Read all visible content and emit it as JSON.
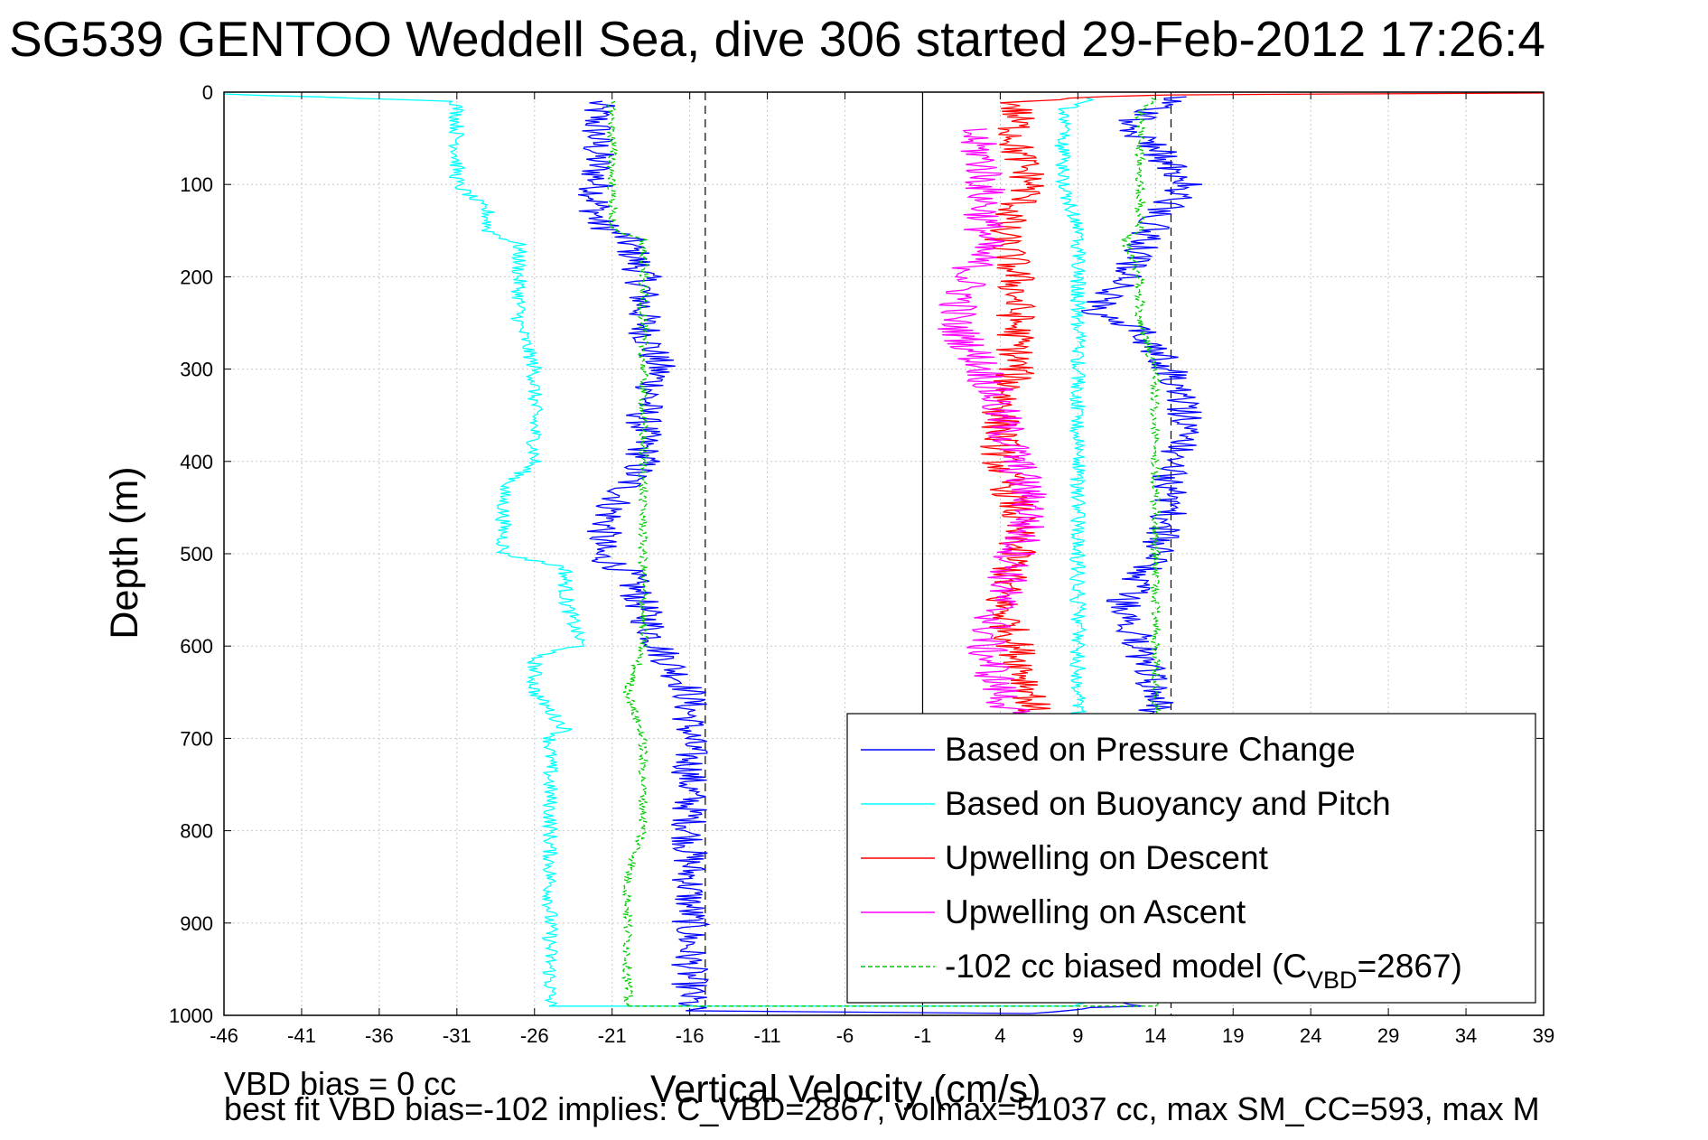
{
  "chart_data": {
    "type": "line",
    "title": "SG539 GENTOO Weddell Sea, dive 306 started 29-Feb-2012 17:26:4",
    "xlabel": "Vertical Velocity (cm/s)",
    "ylabel": "Depth (m)",
    "xlim": [
      -46,
      39
    ],
    "ylim": [
      0,
      1000
    ],
    "y_reversed": true,
    "grid": true,
    "xticks": [
      -46,
      -41,
      -36,
      -31,
      -26,
      -21,
      -16,
      -11,
      -6,
      -1,
      4,
      9,
      14,
      19,
      24,
      29,
      34,
      39
    ],
    "yticks": [
      0,
      100,
      200,
      300,
      400,
      500,
      600,
      700,
      800,
      900,
      1000
    ],
    "legend_position": "bottom-right",
    "reference_lines": {
      "solid_x": -1,
      "dashed_x": [
        -15,
        15
      ]
    },
    "series": [
      {
        "name": "Based on Pressure Change",
        "color": "#0000ff",
        "style": "solid",
        "noise": 1.2,
        "points": [
          [
            -22,
            10
          ],
          [
            -22,
            50
          ],
          [
            -22,
            100
          ],
          [
            -22,
            140
          ],
          [
            -20,
            160
          ],
          [
            -19,
            200
          ],
          [
            -19,
            250
          ],
          [
            -18,
            300
          ],
          [
            -19,
            350
          ],
          [
            -19,
            400
          ],
          [
            -21,
            450
          ],
          [
            -22,
            500
          ],
          [
            -20,
            520
          ],
          [
            -19,
            560
          ],
          [
            -18,
            600
          ],
          [
            -16,
            650
          ],
          [
            -16,
            700
          ],
          [
            -16,
            750
          ],
          [
            -16,
            800
          ],
          [
            -16,
            850
          ],
          [
            -16,
            900
          ],
          [
            -16,
            950
          ],
          [
            -16,
            995
          ],
          [
            5,
            998
          ],
          [
            12,
            990
          ],
          [
            13,
            950
          ],
          [
            13,
            900
          ],
          [
            13,
            850
          ],
          [
            13,
            800
          ],
          [
            13,
            750
          ],
          [
            14,
            700
          ],
          [
            14,
            650
          ],
          [
            13,
            600
          ],
          [
            12,
            550
          ],
          [
            14,
            500
          ],
          [
            15,
            450
          ],
          [
            15,
            400
          ],
          [
            16,
            370
          ],
          [
            16,
            350
          ],
          [
            15,
            300
          ],
          [
            13,
            260
          ],
          [
            10,
            240
          ],
          [
            12,
            200
          ],
          [
            13,
            170
          ],
          [
            14,
            140
          ],
          [
            16,
            100
          ],
          [
            14,
            60
          ],
          [
            12,
            40
          ],
          [
            14,
            15
          ],
          [
            16,
            5
          ]
        ]
      },
      {
        "name": "Based on Buoyancy and Pitch",
        "color": "#00ffff",
        "style": "solid",
        "noise": 0.5,
        "points": [
          [
            -46,
            2
          ],
          [
            -31,
            10
          ],
          [
            -31,
            50
          ],
          [
            -31,
            100
          ],
          [
            -29,
            130
          ],
          [
            -29,
            150
          ],
          [
            -27,
            165
          ],
          [
            -27,
            200
          ],
          [
            -27,
            250
          ],
          [
            -26,
            300
          ],
          [
            -26,
            350
          ],
          [
            -26,
            400
          ],
          [
            -28,
            430
          ],
          [
            -28,
            500
          ],
          [
            -24,
            515
          ],
          [
            -24,
            550
          ],
          [
            -23,
            600
          ],
          [
            -26,
            610
          ],
          [
            -26,
            650
          ],
          [
            -24,
            690
          ],
          [
            -25,
            700
          ],
          [
            -25,
            750
          ],
          [
            -25,
            800
          ],
          [
            -25,
            850
          ],
          [
            -25,
            900
          ],
          [
            -25,
            950
          ],
          [
            -25,
            990
          ],
          [
            9,
            990
          ],
          [
            9,
            950
          ],
          [
            9,
            900
          ],
          [
            9,
            850
          ],
          [
            9,
            800
          ],
          [
            9,
            750
          ],
          [
            9,
            700
          ],
          [
            9,
            650
          ],
          [
            9,
            600
          ],
          [
            9,
            550
          ],
          [
            9,
            500
          ],
          [
            9,
            450
          ],
          [
            9,
            400
          ],
          [
            9,
            370
          ],
          [
            9,
            350
          ],
          [
            9,
            300
          ],
          [
            9,
            250
          ],
          [
            9,
            200
          ],
          [
            9,
            150
          ],
          [
            8,
            100
          ],
          [
            8,
            50
          ],
          [
            8,
            20
          ],
          [
            10,
            5
          ]
        ]
      },
      {
        "name": "Upwelling on Descent",
        "color": "#ff0000",
        "style": "solid",
        "noise": 1.3,
        "points": [
          [
            39,
            1
          ],
          [
            14,
            3
          ],
          [
            5,
            10
          ],
          [
            5,
            30
          ],
          [
            5,
            60
          ],
          [
            6,
            100
          ],
          [
            4,
            150
          ],
          [
            5,
            200
          ],
          [
            5,
            250
          ],
          [
            5,
            300
          ],
          [
            4,
            350
          ],
          [
            4,
            400
          ],
          [
            5,
            450
          ],
          [
            5,
            500
          ],
          [
            4,
            550
          ],
          [
            5,
            600
          ],
          [
            6,
            650
          ],
          [
            6,
            700
          ]
        ]
      },
      {
        "name": "Upwelling on Ascent",
        "color": "#ff00ff",
        "style": "solid",
        "noise": 1.4,
        "points": [
          [
            2,
            40
          ],
          [
            3,
            80
          ],
          [
            3,
            120
          ],
          [
            3,
            160
          ],
          [
            2,
            200
          ],
          [
            1,
            250
          ],
          [
            3,
            300
          ],
          [
            4,
            350
          ],
          [
            5,
            400
          ],
          [
            6,
            450
          ],
          [
            5,
            500
          ],
          [
            4,
            550
          ],
          [
            3,
            600
          ],
          [
            4,
            650
          ],
          [
            5,
            680
          ]
        ]
      },
      {
        "name": "-102 cc biased model (C_VBD=2867)",
        "color": "#00cc00",
        "style": "dashed",
        "noise": 0.3,
        "points": [
          [
            -21,
            10
          ],
          [
            -21,
            50
          ],
          [
            -21,
            100
          ],
          [
            -21,
            150
          ],
          [
            -19,
            160
          ],
          [
            -19,
            200
          ],
          [
            -19,
            250
          ],
          [
            -19,
            300
          ],
          [
            -19,
            350
          ],
          [
            -19,
            400
          ],
          [
            -19,
            450
          ],
          [
            -19,
            500
          ],
          [
            -19,
            550
          ],
          [
            -19,
            600
          ],
          [
            -20,
            650
          ],
          [
            -19,
            700
          ],
          [
            -19,
            750
          ],
          [
            -19,
            800
          ],
          [
            -20,
            850
          ],
          [
            -20,
            900
          ],
          [
            -20,
            950
          ],
          [
            -20,
            990
          ],
          [
            14,
            990
          ],
          [
            14,
            950
          ],
          [
            14,
            900
          ],
          [
            14,
            850
          ],
          [
            14,
            800
          ],
          [
            14,
            750
          ],
          [
            14,
            700
          ],
          [
            14,
            650
          ],
          [
            14,
            600
          ],
          [
            14,
            550
          ],
          [
            14,
            500
          ],
          [
            14,
            450
          ],
          [
            14,
            400
          ],
          [
            14,
            350
          ],
          [
            14,
            300
          ],
          [
            13,
            250
          ],
          [
            13,
            200
          ],
          [
            12,
            160
          ],
          [
            13,
            150
          ],
          [
            13,
            100
          ],
          [
            13,
            50
          ],
          [
            13,
            20
          ],
          [
            14,
            5
          ]
        ]
      }
    ],
    "legend": [
      {
        "label": "Based on Pressure Change",
        "color": "#0000ff",
        "style": "solid"
      },
      {
        "label": "Based on Buoyancy and Pitch",
        "color": "#00ffff",
        "style": "solid"
      },
      {
        "label": "Upwelling on Descent",
        "color": "#ff0000",
        "style": "solid"
      },
      {
        "label": "Upwelling on Ascent",
        "color": "#ff00ff",
        "style": "solid"
      },
      {
        "label": "-102 cc biased model (C",
        "sub": "VBD",
        "suffix": "=2867)",
        "color": "#00cc00",
        "style": "dashed"
      }
    ]
  },
  "footer": {
    "line1": "VBD bias = 0 cc",
    "line2": "best fit VBD bias=-102 implies: C_VBD=2867, volmax=51037 cc, max SM_CC=593, max M"
  }
}
